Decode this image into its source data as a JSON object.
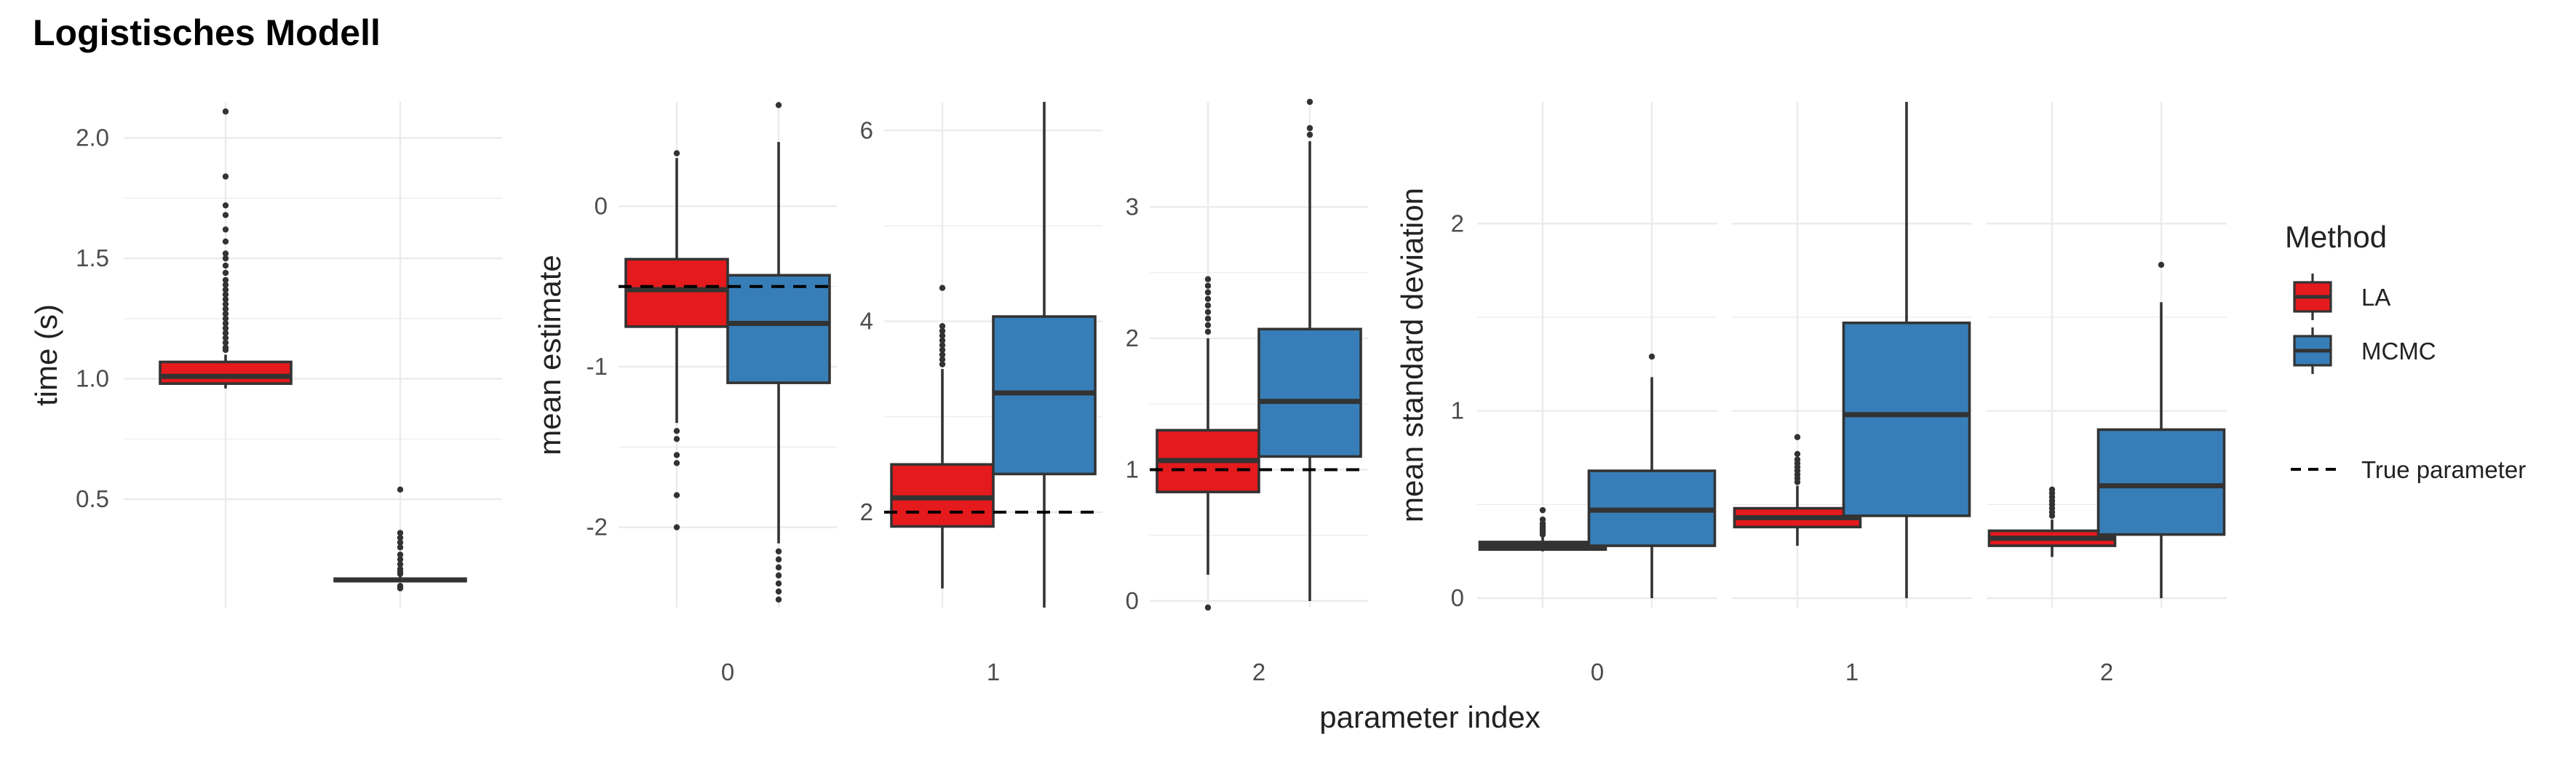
{
  "title": "Logistisches Modell",
  "xlabel": "parameter index",
  "colors": {
    "LA": "#E41A1C",
    "MCMC": "#377EB8",
    "grid": "#EBEBEB",
    "outline": "#333333"
  },
  "legend": {
    "title": "Method",
    "items": [
      {
        "label": "LA",
        "color": "#E41A1C"
      },
      {
        "label": "MCMC",
        "color": "#377EB8"
      }
    ],
    "line_label": "True parameter"
  },
  "chart_data": [
    {
      "type": "box",
      "ylabel": "time (s)",
      "ylim": [
        0.05,
        2.15
      ],
      "yticks": [
        0.5,
        1.0,
        1.5,
        2.0
      ],
      "ytick_labels": [
        "0.5",
        "1.0",
        "1.5",
        "2.0"
      ],
      "categories": [
        ""
      ],
      "boxes": [
        {
          "category": "",
          "method": "LA",
          "whislo": 0.96,
          "q1": 0.98,
          "med": 1.01,
          "q3": 1.07,
          "whishi": 1.1,
          "outliers": [
            2.11,
            1.84,
            1.72,
            1.68,
            1.62,
            1.57,
            1.52,
            1.5,
            1.47,
            1.44,
            1.41,
            1.39,
            1.37,
            1.35,
            1.33,
            1.31,
            1.29,
            1.27,
            1.25,
            1.23,
            1.21,
            1.19,
            1.17,
            1.15,
            1.13,
            1.12
          ]
        },
        {
          "category": "",
          "method": "MCMC",
          "whislo": 0.155,
          "q1": 0.16,
          "med": 0.165,
          "q3": 0.17,
          "whishi": 0.18,
          "outliers": [
            0.54,
            0.36,
            0.34,
            0.32,
            0.3,
            0.27,
            0.25,
            0.23,
            0.21,
            0.2,
            0.19,
            0.14,
            0.13
          ]
        }
      ]
    },
    {
      "type": "box",
      "ylabel": "mean estimate",
      "categories": [
        "0",
        "1",
        "2"
      ],
      "panels": [
        {
          "category": "0",
          "ylim": [
            -2.5,
            0.65
          ],
          "yticks": [
            -2,
            -1,
            0
          ],
          "ytick_labels": [
            "-2",
            "-1",
            "0"
          ],
          "true_param": -0.5,
          "boxes": [
            {
              "method": "LA",
              "whislo": -1.35,
              "q1": -0.75,
              "med": -0.52,
              "q3": -0.33,
              "whishi": 0.3,
              "outliers": [
                0.33,
                -1.4,
                -1.45,
                -1.55,
                -1.6,
                -1.8,
                -2.0
              ]
            },
            {
              "method": "MCMC",
              "whislo": -2.1,
              "q1": -1.1,
              "med": -0.73,
              "q3": -0.43,
              "whishi": 0.4,
              "outliers": [
                0.63,
                -2.15,
                -2.2,
                -2.25,
                -2.3,
                -2.35,
                -2.4,
                -2.45
              ]
            }
          ]
        },
        {
          "category": "1",
          "ylim": [
            1.0,
            6.3
          ],
          "yticks": [
            2,
            4,
            6
          ],
          "ytick_labels": [
            "2",
            "4",
            "6"
          ],
          "true_param": 2,
          "boxes": [
            {
              "method": "LA",
              "whislo": 1.2,
              "q1": 1.85,
              "med": 2.15,
              "q3": 2.5,
              "whishi": 3.5,
              "outliers": [
                3.55,
                3.6,
                3.65,
                3.7,
                3.75,
                3.8,
                3.85,
                3.9,
                3.95,
                4.35
              ]
            },
            {
              "method": "MCMC",
              "whislo": 1.0,
              "q1": 2.4,
              "med": 3.25,
              "q3": 4.05,
              "whishi": 6.3,
              "outliers": []
            }
          ]
        },
        {
          "category": "2",
          "ylim": [
            -0.05,
            3.8
          ],
          "yticks": [
            0,
            1,
            2,
            3
          ],
          "ytick_labels": [
            "0",
            "1",
            "2",
            "3"
          ],
          "true_param": 1,
          "boxes": [
            {
              "method": "LA",
              "whislo": 0.2,
              "q1": 0.83,
              "med": 1.07,
              "q3": 1.3,
              "whishi": 2.0,
              "outliers": [
                2.05,
                2.1,
                2.15,
                2.2,
                2.25,
                2.3,
                2.35,
                2.4,
                2.45,
                -0.05
              ]
            },
            {
              "method": "MCMC",
              "whislo": 0.0,
              "q1": 1.1,
              "med": 1.52,
              "q3": 2.07,
              "whishi": 3.5,
              "outliers": [
                3.55,
                3.6,
                3.8
              ]
            }
          ]
        }
      ]
    },
    {
      "type": "box",
      "ylabel": "mean standard deviation",
      "ylim": [
        -0.05,
        2.65
      ],
      "yticks": [
        0,
        1,
        2
      ],
      "ytick_labels": [
        "0",
        "1",
        "2"
      ],
      "categories": [
        "0",
        "1",
        "2"
      ],
      "panels": [
        {
          "category": "0",
          "boxes": [
            {
              "method": "LA",
              "whislo": 0.25,
              "q1": 0.26,
              "med": 0.28,
              "q3": 0.3,
              "whishi": 0.33,
              "outliers": [
                0.34,
                0.35,
                0.36,
                0.37,
                0.38,
                0.39,
                0.4,
                0.42,
                0.47
              ]
            },
            {
              "method": "MCMC",
              "whislo": 0.0,
              "q1": 0.28,
              "med": 0.47,
              "q3": 0.68,
              "whishi": 1.18,
              "outliers": [
                1.29
              ]
            }
          ]
        },
        {
          "category": "1",
          "boxes": [
            {
              "method": "LA",
              "whislo": 0.28,
              "q1": 0.38,
              "med": 0.43,
              "q3": 0.48,
              "whishi": 0.6,
              "outliers": [
                0.62,
                0.64,
                0.66,
                0.68,
                0.7,
                0.72,
                0.74,
                0.77,
                0.86
              ]
            },
            {
              "method": "MCMC",
              "whislo": 0.0,
              "q1": 0.44,
              "med": 0.98,
              "q3": 1.47,
              "whishi": 2.65,
              "outliers": []
            }
          ]
        },
        {
          "category": "2",
          "boxes": [
            {
              "method": "LA",
              "whislo": 0.22,
              "q1": 0.28,
              "med": 0.32,
              "q3": 0.36,
              "whishi": 0.42,
              "outliers": [
                0.44,
                0.46,
                0.48,
                0.5,
                0.52,
                0.54,
                0.56,
                0.58
              ]
            },
            {
              "method": "MCMC",
              "whislo": 0.0,
              "q1": 0.34,
              "med": 0.6,
              "q3": 0.9,
              "whishi": 1.58,
              "outliers": [
                1.78
              ]
            }
          ]
        }
      ]
    }
  ]
}
